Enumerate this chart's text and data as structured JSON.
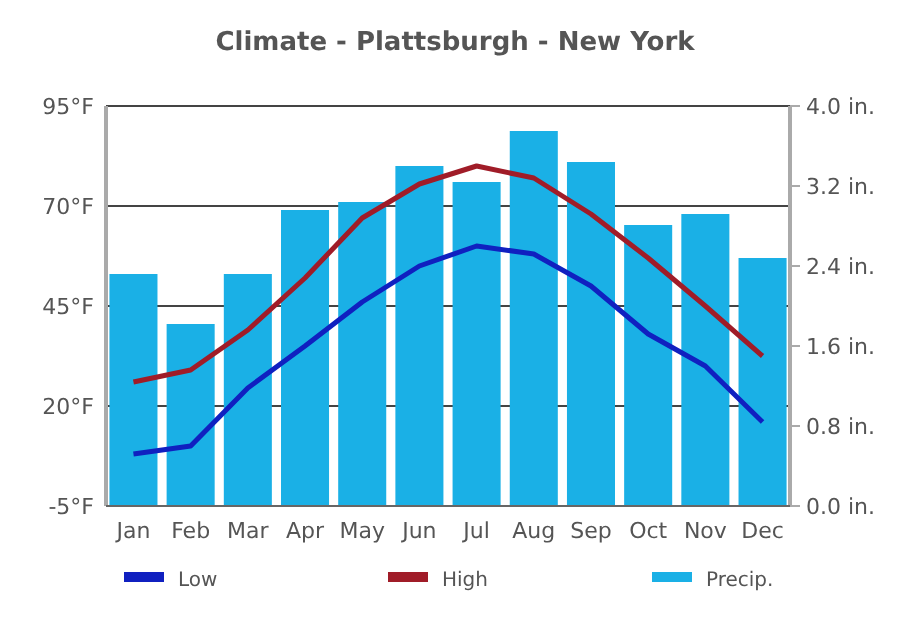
{
  "chart_data": {
    "type": "bar",
    "title": "Climate - Plattsburgh - New York",
    "categories": [
      "Jan",
      "Feb",
      "Mar",
      "Apr",
      "May",
      "Jun",
      "Jul",
      "Aug",
      "Sep",
      "Oct",
      "Nov",
      "Dec"
    ],
    "series": [
      {
        "name": "Low",
        "type": "line",
        "color": "#1020c0",
        "values": [
          8,
          10,
          24.5,
          35,
          46,
          55,
          60,
          58,
          50,
          38,
          30,
          16
        ]
      },
      {
        "name": "High",
        "type": "line",
        "color": "#a01c28",
        "values": [
          26,
          29,
          39,
          52,
          67,
          75.5,
          80,
          77,
          68,
          57,
          45,
          32.5
        ]
      },
      {
        "name": "Precip.",
        "axis": "y2",
        "color": "#1ab0e6",
        "values": [
          2.32,
          1.82,
          2.32,
          2.96,
          3.04,
          3.4,
          3.24,
          3.75,
          3.44,
          2.81,
          2.92,
          2.48
        ]
      }
    ],
    "ylim": [
      -5,
      95
    ],
    "yticks": [
      {
        "value": -5,
        "label": "-5°F"
      },
      {
        "value": 20,
        "label": "20°F"
      },
      {
        "value": 45,
        "label": "45°F"
      },
      {
        "value": 70,
        "label": "70°F"
      },
      {
        "value": 95,
        "label": "95°F"
      }
    ],
    "y2lim": [
      0,
      4
    ],
    "y2ticks": [
      {
        "value": 0,
        "label": "0.0 in."
      },
      {
        "value": 0.8,
        "label": "0.8 in."
      },
      {
        "value": 1.6,
        "label": "1.6 in."
      },
      {
        "value": 2.4,
        "label": "2.4 in."
      },
      {
        "value": 3.2,
        "label": "3.2 in."
      },
      {
        "value": 4,
        "label": "4.0 in."
      }
    ],
    "grid": "y",
    "legend": "bottom",
    "marker": "none",
    "line_style": "solid"
  }
}
